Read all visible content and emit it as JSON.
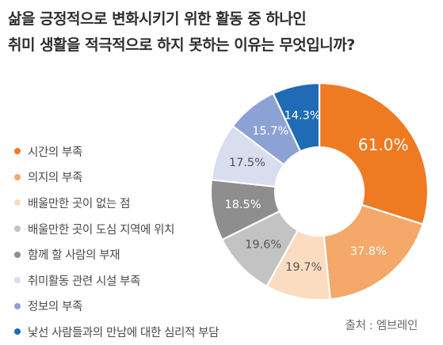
{
  "title_lines": [
    "삶을 긍정적으로 변화시키기 위한 활동 중 하나인",
    "취미 생활을 적극적으로 하지 못하는 이유는 무엇입니까?"
  ],
  "source": "출처 : 엠브레인",
  "chart_data": {
    "type": "pie",
    "donut": true,
    "categories": [
      "시간의 부족",
      "의지의 부족",
      "배울만한 곳이 없는 점",
      "배울만한 곳이 도심 지역에 위치",
      "함께 할 사람의 부재",
      "취미활동 관련 시설 부족",
      "정보의 부족",
      "낯선 사람들과의 만남에 대한 심리적 부담"
    ],
    "values": [
      61.0,
      37.8,
      19.7,
      19.6,
      18.5,
      17.5,
      15.7,
      14.3
    ],
    "value_labels": [
      "61.0%",
      "37.8%",
      "19.7%",
      "19.6%",
      "18.5%",
      "17.5%",
      "15.7%",
      "14.3%"
    ],
    "colors": [
      "#ee7a22",
      "#f4a869",
      "#fbdcc0",
      "#c3c3c3",
      "#8e8e8e",
      "#d8ddef",
      "#8da2d4",
      "#1f6bb5"
    ],
    "label_colors": [
      "#ffffff",
      "#ffffff",
      "#555555",
      "#555555",
      "#ffffff",
      "#555555",
      "#ffffff",
      "#ffffff"
    ],
    "legend_placement": "left"
  }
}
